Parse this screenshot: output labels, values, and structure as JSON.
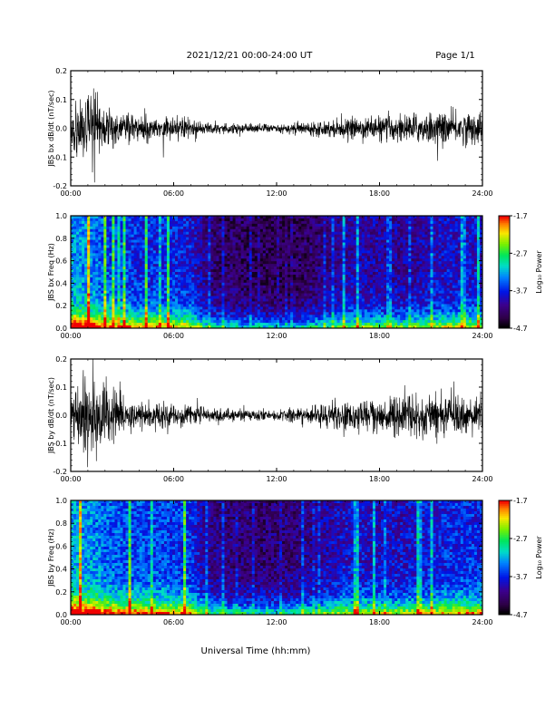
{
  "header": {
    "title": "2021/12/21  00:00-24:00 UT",
    "page": "Page 1/1"
  },
  "xaxis": {
    "label": "Universal Time (hh:mm)",
    "ticks": [
      "00:00",
      "06:00",
      "12:00",
      "18:00",
      "24:00"
    ]
  },
  "chart_data": [
    {
      "type": "line",
      "ylabel": "JBS bx dB/dt (nT/sec)",
      "ylim": [
        -0.2,
        0.2
      ],
      "yticks": [
        "0.2",
        "0.1",
        "0.0",
        "-0.1",
        "-0.2"
      ],
      "xlim_hours": [
        0,
        24
      ],
      "series": [
        {
          "hours": [
            0,
            1,
            2,
            3,
            4,
            5,
            6,
            7,
            8,
            9,
            10,
            11,
            12,
            13,
            14,
            15,
            16,
            17,
            18,
            19,
            20,
            21,
            22,
            23,
            24
          ],
          "amplitude": [
            0.09,
            0.13,
            0.07,
            0.06,
            0.05,
            0.04,
            0.04,
            0.035,
            0.025,
            0.02,
            0.02,
            0.018,
            0.015,
            0.02,
            0.025,
            0.03,
            0.035,
            0.04,
            0.045,
            0.05,
            0.055,
            0.06,
            0.06,
            0.06,
            0.06
          ]
        }
      ]
    },
    {
      "type": "heatmap",
      "ylabel": "JBS bx Freq (Hz)",
      "ylim": [
        0.0,
        1.0
      ],
      "yticks": [
        "1.0",
        "0.8",
        "0.6",
        "0.4",
        "0.2",
        "0.0"
      ],
      "colorbar": {
        "label": "Log₁₀ Power",
        "ticks": [
          "-1.7",
          "-2.7",
          "-3.7",
          "-4.7"
        ],
        "range": [
          -4.7,
          -1.7
        ]
      },
      "hours": [
        0,
        1,
        2,
        3,
        4,
        5,
        6,
        7,
        8,
        9,
        10,
        11,
        12,
        13,
        14,
        15,
        16,
        17,
        18,
        19,
        20,
        21,
        22,
        23,
        24
      ],
      "activity": [
        0.85,
        0.8,
        0.7,
        0.65,
        0.6,
        0.6,
        0.58,
        0.55,
        0.3,
        0.25,
        0.22,
        0.2,
        0.18,
        0.2,
        0.25,
        0.32,
        0.4,
        0.42,
        0.4,
        0.38,
        0.4,
        0.45,
        0.5,
        0.5,
        0.5
      ]
    },
    {
      "type": "line",
      "ylabel": "JBS by dB/dt (nT/sec)",
      "ylim": [
        -0.2,
        0.2
      ],
      "yticks": [
        "0.2",
        "0.1",
        "0.0",
        "-0.1",
        "-0.2"
      ],
      "xlim_hours": [
        0,
        24
      ],
      "series": [
        {
          "hours": [
            0,
            1,
            2,
            3,
            4,
            5,
            6,
            7,
            8,
            9,
            10,
            11,
            12,
            13,
            14,
            15,
            16,
            17,
            18,
            19,
            20,
            21,
            22,
            23,
            24
          ],
          "amplitude": [
            0.1,
            0.17,
            0.11,
            0.07,
            0.05,
            0.05,
            0.045,
            0.04,
            0.03,
            0.025,
            0.022,
            0.02,
            0.02,
            0.025,
            0.035,
            0.045,
            0.055,
            0.065,
            0.075,
            0.085,
            0.085,
            0.085,
            0.075,
            0.07,
            0.07
          ]
        }
      ]
    },
    {
      "type": "heatmap",
      "ylabel": "JBS by Freq (Hz)",
      "ylim": [
        0.0,
        1.0
      ],
      "yticks": [
        "1.0",
        "0.8",
        "0.6",
        "0.4",
        "0.2",
        "0.0"
      ],
      "colorbar": {
        "label": "Log₁₀ Power",
        "ticks": [
          "-1.7",
          "-2.7",
          "-3.7",
          "-4.7"
        ],
        "range": [
          -4.7,
          -1.7
        ]
      },
      "hours": [
        0,
        1,
        2,
        3,
        4,
        5,
        6,
        7,
        8,
        9,
        10,
        11,
        12,
        13,
        14,
        15,
        16,
        17,
        18,
        19,
        20,
        21,
        22,
        23,
        24
      ],
      "activity": [
        0.9,
        0.85,
        0.75,
        0.7,
        0.68,
        0.66,
        0.65,
        0.62,
        0.35,
        0.3,
        0.28,
        0.28,
        0.28,
        0.3,
        0.35,
        0.42,
        0.5,
        0.5,
        0.48,
        0.48,
        0.5,
        0.55,
        0.6,
        0.6,
        0.6
      ]
    }
  ]
}
